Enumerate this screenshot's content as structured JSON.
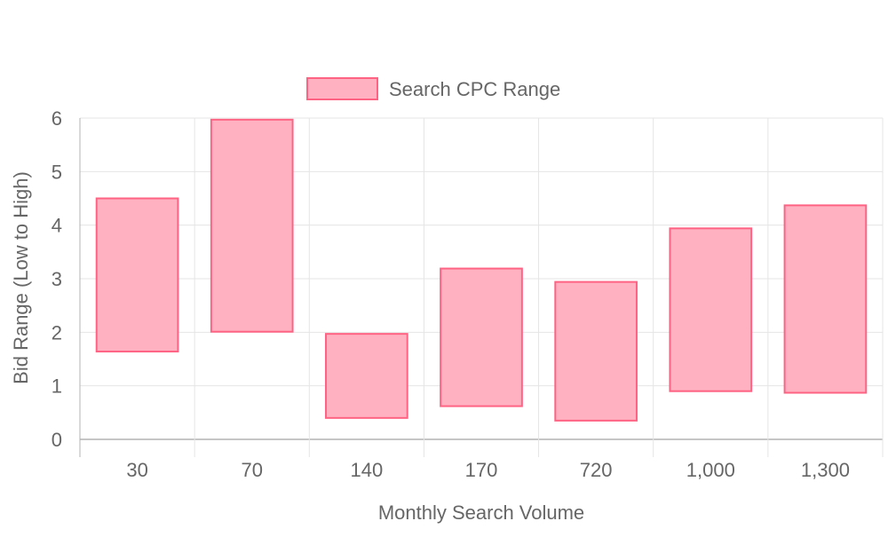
{
  "chart_data": {
    "type": "bar",
    "subtype": "floating-range",
    "categories": [
      "30",
      "70",
      "140",
      "170",
      "720",
      "1,000",
      "1,300"
    ],
    "series": [
      {
        "name": "Search CPC Range",
        "ranges": [
          [
            1.64,
            4.5
          ],
          [
            2.01,
            5.97
          ],
          [
            0.4,
            1.97
          ],
          [
            0.62,
            3.19
          ],
          [
            0.35,
            2.94
          ],
          [
            0.9,
            3.94
          ],
          [
            0.87,
            4.37
          ]
        ],
        "fill": "#ffb1c1",
        "stroke": "#ff6384"
      }
    ],
    "xlabel": "Monthly Search Volume",
    "ylabel": "Bid Range (Low to High)",
    "ylim": [
      0,
      6
    ],
    "yticks": [
      "0",
      "1",
      "2",
      "3",
      "4",
      "5",
      "6"
    ],
    "grid": true,
    "legend_position": "top",
    "colors": {
      "grid": "#e5e5e5",
      "axis": "#b3b3b3",
      "text": "#666666"
    }
  }
}
